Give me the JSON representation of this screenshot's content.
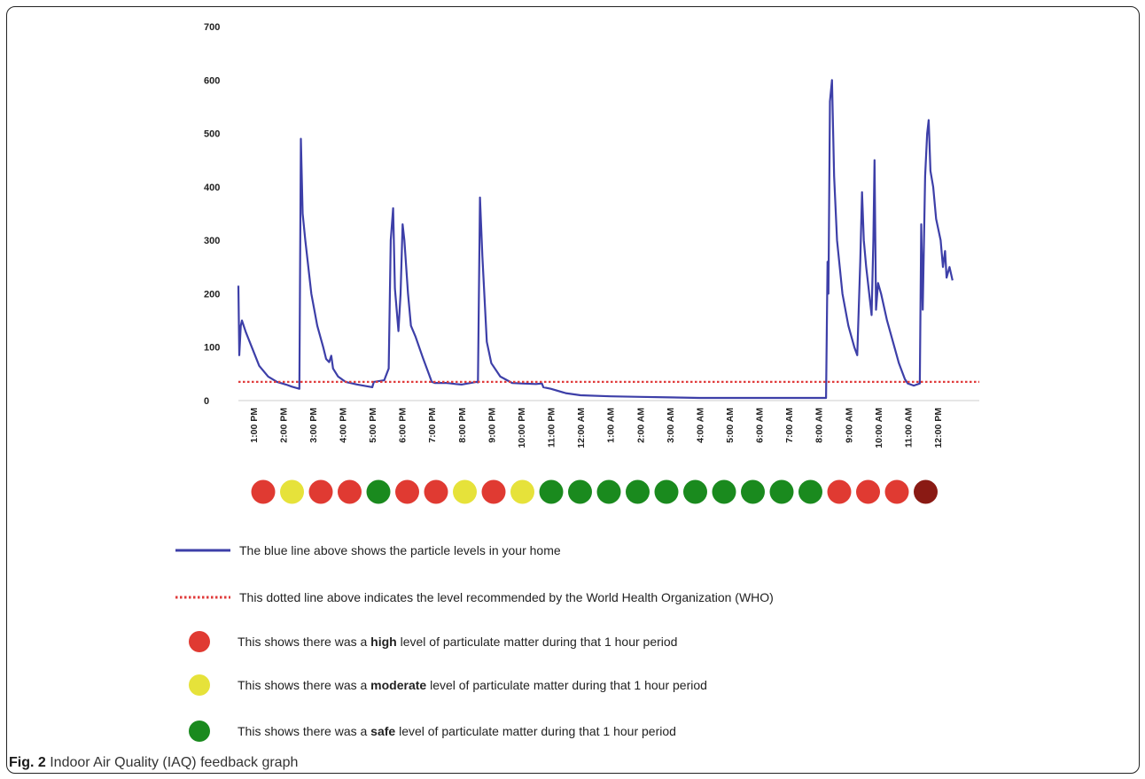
{
  "chart_data": {
    "type": "line",
    "title": "",
    "xlabel": "",
    "ylabel": "",
    "ylim": [
      0,
      700
    ],
    "yticks": [
      0,
      100,
      200,
      300,
      400,
      500,
      600,
      700
    ],
    "xticks": [
      "1:00 PM",
      "2:00 PM",
      "3:00 PM",
      "4:00 PM",
      "5:00 PM",
      "6:00 PM",
      "7:00 PM",
      "8:00 PM",
      "9:00 PM",
      "10:00 PM",
      "11:00 PM",
      "12:00 AM",
      "1:00 AM",
      "2:00 AM",
      "3:00 AM",
      "4:00 AM",
      "5:00 AM",
      "6:00 AM",
      "7:00 AM",
      "8:00 AM",
      "9:00 AM",
      "10:00 AM",
      "11:00 AM",
      "12:00 PM"
    ],
    "x_range_hours": [
      0.5,
      25.4
    ],
    "series": [
      {
        "color": "#3d3fa8",
        "points": [
          [
            0.5,
            215
          ],
          [
            0.53,
            85
          ],
          [
            0.58,
            140
          ],
          [
            0.62,
            150
          ],
          [
            0.75,
            128
          ],
          [
            0.95,
            100
          ],
          [
            1.2,
            65
          ],
          [
            1.5,
            45
          ],
          [
            1.8,
            35
          ],
          [
            2.1,
            30
          ],
          [
            2.3,
            26
          ],
          [
            2.55,
            22
          ],
          [
            2.6,
            490
          ],
          [
            2.66,
            350
          ],
          [
            2.75,
            300
          ],
          [
            2.95,
            200
          ],
          [
            3.15,
            140
          ],
          [
            3.35,
            100
          ],
          [
            3.45,
            78
          ],
          [
            3.55,
            72
          ],
          [
            3.62,
            84
          ],
          [
            3.68,
            60
          ],
          [
            3.85,
            45
          ],
          [
            4.1,
            35
          ],
          [
            4.5,
            30
          ],
          [
            4.9,
            26
          ],
          [
            5.0,
            25
          ],
          [
            5.05,
            35
          ],
          [
            5.4,
            38
          ],
          [
            5.55,
            60
          ],
          [
            5.62,
            300
          ],
          [
            5.7,
            360
          ],
          [
            5.76,
            210
          ],
          [
            5.88,
            130
          ],
          [
            5.95,
            200
          ],
          [
            6.02,
            330
          ],
          [
            6.08,
            300
          ],
          [
            6.2,
            200
          ],
          [
            6.3,
            140
          ],
          [
            6.45,
            120
          ],
          [
            6.7,
            80
          ],
          [
            6.9,
            50
          ],
          [
            7.0,
            35
          ],
          [
            7.1,
            33
          ],
          [
            7.5,
            33
          ],
          [
            7.8,
            31
          ],
          [
            8.0,
            30
          ],
          [
            8.5,
            35
          ],
          [
            8.55,
            34
          ],
          [
            8.62,
            380
          ],
          [
            8.7,
            270
          ],
          [
            8.85,
            110
          ],
          [
            9.0,
            70
          ],
          [
            9.3,
            45
          ],
          [
            9.7,
            33
          ],
          [
            10.0,
            32
          ],
          [
            10.5,
            31
          ],
          [
            10.7,
            32
          ],
          [
            10.75,
            25
          ],
          [
            11.0,
            22
          ],
          [
            11.5,
            14
          ],
          [
            12.0,
            10
          ],
          [
            13.0,
            8
          ],
          [
            14.0,
            7
          ],
          [
            15.0,
            6
          ],
          [
            16.0,
            5
          ],
          [
            17.0,
            5
          ],
          [
            18.0,
            5
          ],
          [
            19.0,
            5
          ],
          [
            20.0,
            5
          ],
          [
            20.25,
            5
          ],
          [
            20.3,
            260
          ],
          [
            20.33,
            200
          ],
          [
            20.38,
            560
          ],
          [
            20.45,
            600
          ],
          [
            20.52,
            420
          ],
          [
            20.62,
            300
          ],
          [
            20.8,
            200
          ],
          [
            21.0,
            140
          ],
          [
            21.2,
            100
          ],
          [
            21.3,
            85
          ],
          [
            21.4,
            260
          ],
          [
            21.46,
            390
          ],
          [
            21.52,
            300
          ],
          [
            21.6,
            250
          ],
          [
            21.7,
            200
          ],
          [
            21.78,
            160
          ],
          [
            21.84,
            300
          ],
          [
            21.88,
            450
          ],
          [
            21.93,
            170
          ],
          [
            22.0,
            220
          ],
          [
            22.1,
            200
          ],
          [
            22.3,
            150
          ],
          [
            22.5,
            110
          ],
          [
            22.7,
            70
          ],
          [
            22.9,
            40
          ],
          [
            23.0,
            32
          ],
          [
            23.2,
            28
          ],
          [
            23.4,
            32
          ],
          [
            23.45,
            330
          ],
          [
            23.5,
            170
          ],
          [
            23.58,
            420
          ],
          [
            23.65,
            500
          ],
          [
            23.7,
            525
          ],
          [
            23.76,
            430
          ],
          [
            23.85,
            400
          ],
          [
            23.95,
            340
          ],
          [
            24.1,
            300
          ],
          [
            24.18,
            250
          ],
          [
            24.25,
            280
          ],
          [
            24.3,
            230
          ],
          [
            24.4,
            250
          ],
          [
            24.5,
            225
          ]
        ]
      },
      {
        "color": "#e03a3a",
        "style": "dotted",
        "values_constant": 35
      }
    ],
    "hourly_levels": [
      "high",
      "moderate",
      "high",
      "high",
      "safe",
      "high",
      "high",
      "moderate",
      "high",
      "moderate",
      "safe",
      "safe",
      "safe",
      "safe",
      "safe",
      "safe",
      "safe",
      "safe",
      "safe",
      "safe",
      "high",
      "high",
      "high",
      "very-high"
    ],
    "level_colors": {
      "high": "#e03a32",
      "moderate": "#e6e23a",
      "safe": "#1a8a1e",
      "very-high": "#8a1a14"
    }
  },
  "legend": {
    "line_text": "The blue line above shows the particle levels in your home",
    "dotted_text": "This dotted line above indicates the level recommended by the World Health Organization (WHO)",
    "high_pre": "This shows there was a ",
    "high_bold": "high",
    "high_post": " level of particulate matter during that 1 hour period",
    "moderate_pre": "This shows there was a ",
    "moderate_bold": "moderate",
    "moderate_post": " level of particulate matter during that 1 hour period",
    "safe_pre": "This shows there was a ",
    "safe_bold": "safe",
    "safe_post": " level of particulate matter during that 1 hour period"
  },
  "caption": {
    "label": "Fig. 2",
    "text": " Indoor Air Quality (IAQ) feedback graph"
  }
}
